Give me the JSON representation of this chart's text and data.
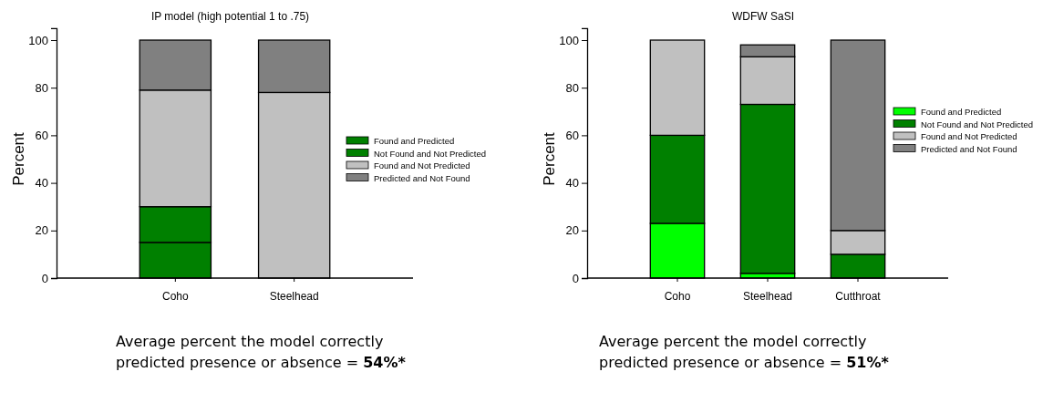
{
  "chart_data": [
    {
      "type": "bar",
      "stacked": true,
      "title": "IP model (high potential 1 to .75)",
      "ylabel": "Percent",
      "categories": [
        "Coho",
        "Steelhead"
      ],
      "series": [
        {
          "name": "Found and Predicted",
          "color": "#008000",
          "values": [
            15,
            0
          ]
        },
        {
          "name": "Not Found and Not Predicted",
          "color": "#008000",
          "values": [
            15,
            0
          ]
        },
        {
          "name": "Found and Not Predicted",
          "color": "#c0c0c0",
          "values": [
            49,
            78
          ]
        },
        {
          "name": "Predicted and Not Found",
          "color": "#808080",
          "values": [
            21,
            22
          ]
        }
      ],
      "ylim": [
        0,
        105
      ],
      "yticks": [
        0,
        20,
        40,
        60,
        80,
        100
      ],
      "legend": "right",
      "annotations": [
        "Average percent the model correctly predicted presence or absence = 54%*"
      ]
    },
    {
      "type": "bar",
      "stacked": true,
      "title": "WDFW SaSI",
      "ylabel": "Percent",
      "categories": [
        "Coho",
        "Steelhead",
        "Cutthroat"
      ],
      "series": [
        {
          "name": "Found and Predicted",
          "color": "#00ff00",
          "values": [
            23,
            2,
            0
          ]
        },
        {
          "name": "Not Found and Not Predicted",
          "color": "#008000",
          "values": [
            37,
            71,
            10
          ]
        },
        {
          "name": "Found and Not Predicted",
          "color": "#c0c0c0",
          "values": [
            40,
            20,
            10
          ]
        },
        {
          "name": "Predicted and Not Found",
          "color": "#808080",
          "values": [
            0,
            5,
            80
          ]
        }
      ],
      "ylim": [
        0,
        105
      ],
      "yticks": [
        0,
        20,
        40,
        60,
        80,
        100
      ],
      "legend": "right",
      "annotations": [
        "Average percent the model correctly predicted presence or absence = 51%*"
      ]
    }
  ]
}
